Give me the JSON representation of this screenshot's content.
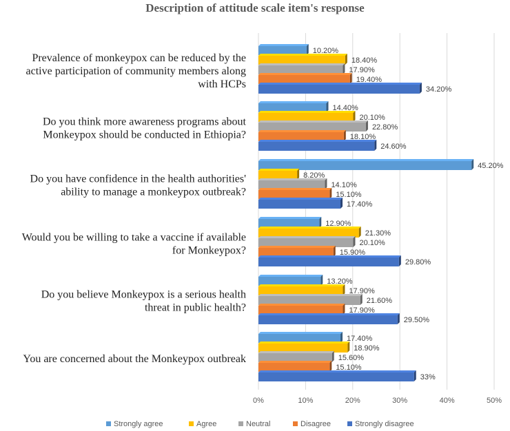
{
  "chart_data": {
    "type": "bar",
    "orientation": "horizontal",
    "style": "3d-clustered",
    "title": "Description of attitude scale item's response",
    "xlabel": "",
    "ylabel": "",
    "xlim": [
      0,
      50
    ],
    "ticks": [
      "0%",
      "10%",
      "20%",
      "30%",
      "40%",
      "50%"
    ],
    "tick_values": [
      0,
      10,
      20,
      30,
      40,
      50
    ],
    "legend_position": "bottom",
    "grid": true,
    "categories": [
      [
        "Prevalence of monkeypox can be reduced by the",
        "active participation of community members along",
        "with HCPs"
      ],
      [
        "Do you think more awareness programs about",
        "Monkeypox should be conducted in Ethiopia?"
      ],
      [
        "Do you have confidence in the health authorities'",
        "ability to manage a monkeypox outbreak?"
      ],
      [
        "Would you be willing to take a vaccine if available",
        "for Monkeypox?"
      ],
      [
        "Do you believe Monkeypox is a serious health",
        "threat in public health?"
      ],
      [
        "You are concerned about the Monkeypox outbreak"
      ]
    ],
    "series": [
      {
        "name": "Strongly agree",
        "color": "#5b9bd5",
        "values": [
          10.2,
          14.4,
          45.2,
          12.9,
          13.2,
          17.4
        ],
        "labels": [
          "10.20%",
          "14.40%",
          "45.20%",
          "12.90%",
          "13.20%",
          "17.40%"
        ]
      },
      {
        "name": "Agree",
        "color": "#ffc000",
        "values": [
          18.4,
          20.1,
          8.2,
          21.3,
          17.9,
          18.9
        ],
        "labels": [
          "18.40%",
          "20.10%",
          "8.20%",
          "21.30%",
          "17.90%",
          "18.90%"
        ]
      },
      {
        "name": "Neutral",
        "color": "#a5a5a5",
        "values": [
          17.9,
          22.8,
          14.1,
          20.1,
          21.6,
          15.6
        ],
        "labels": [
          "17.90%",
          "22.80%",
          "14.10%",
          "20.10%",
          "21.60%",
          "15.60%"
        ]
      },
      {
        "name": "Disagree",
        "color": "#ed7d31",
        "values": [
          19.4,
          18.1,
          15.1,
          15.9,
          17.9,
          15.1
        ],
        "labels": [
          "19.40%",
          "18.10%",
          "15.10%",
          "15.90%",
          "17.90%",
          "15.10%"
        ]
      },
      {
        "name": "Strongly disagree",
        "color": "#4472c4",
        "values": [
          34.2,
          24.6,
          17.4,
          29.8,
          29.5,
          33.0
        ],
        "labels": [
          "34.20%",
          "24.60%",
          "17.40%",
          "29.80%",
          "29.50%",
          "33%"
        ]
      }
    ]
  }
}
